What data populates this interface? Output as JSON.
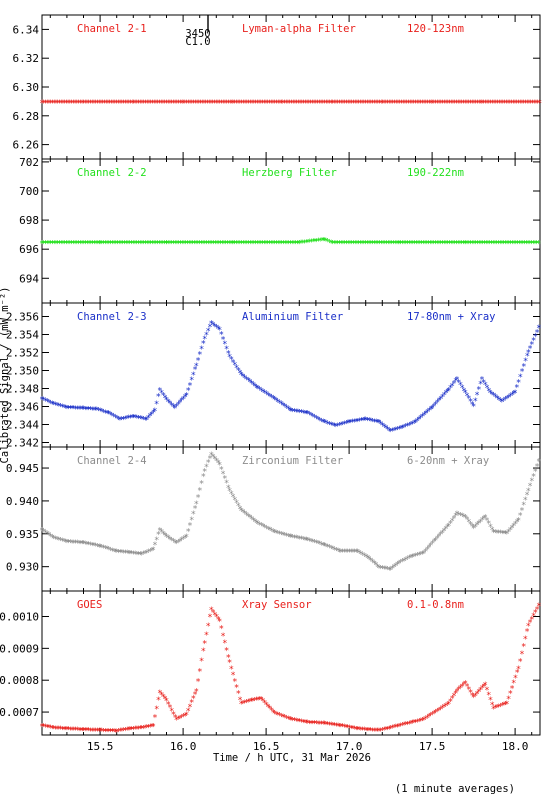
{
  "footer": {
    "xlabel": "Time / h UTC, 31 Mar 2026",
    "ylabel": "Calibrated Signal / (mW m⁻²)",
    "note": "(1 minute averages)"
  },
  "marker": {
    "top": "3450",
    "bottom": "C1.0",
    "time": 16.17
  },
  "chart_data": [
    {
      "type": "scatter",
      "color": "#e8201c",
      "labels": [
        "Channel 2-1",
        "Lyman-alpha Filter",
        "120-123nm"
      ],
      "ylim": [
        6.25,
        6.35
      ],
      "yticks": [
        6.26,
        6.28,
        6.3,
        6.32,
        6.34
      ],
      "tick_labels": [
        "6.26",
        "6.28",
        "6.30",
        "6.32",
        "6.34"
      ],
      "xlim": [
        15.15,
        18.15
      ],
      "x": [
        15.15,
        15.4,
        15.7,
        16.0,
        16.3,
        16.6,
        16.9,
        17.2,
        17.5,
        17.8,
        18.15
      ],
      "y": [
        6.289,
        6.289,
        6.289,
        6.289,
        6.289,
        6.289,
        6.289,
        6.289,
        6.289,
        6.289,
        6.289
      ]
    },
    {
      "type": "scatter",
      "color": "#22e01c",
      "labels": [
        "Channel 2-2",
        "Herzberg Filter",
        "190-222nm"
      ],
      "ylim": [
        692.3,
        702.2
      ],
      "yticks": [
        694,
        696,
        698,
        700,
        702
      ],
      "tick_labels": [
        "694",
        "696",
        "698",
        "700",
        "702"
      ],
      "xlim": [
        15.15,
        18.15
      ],
      "x": [
        15.15,
        15.5,
        15.9,
        16.3,
        16.7,
        16.85,
        16.9,
        17.3,
        17.7,
        18.15
      ],
      "y": [
        696.4,
        696.4,
        696.4,
        696.4,
        696.4,
        696.6,
        696.4,
        696.4,
        696.4,
        696.4
      ]
    },
    {
      "type": "scatter",
      "color": "#1a2fc8",
      "labels": [
        "Channel 2-3",
        "Aluminium Filter",
        "17-80nm + Xray"
      ],
      "ylim": [
        2.3415,
        2.3575
      ],
      "yticks": [
        2.342,
        2.344,
        2.346,
        2.348,
        2.35,
        2.352,
        2.354,
        2.356
      ],
      "tick_labels": [
        "2.342",
        "2.344",
        "2.346",
        "2.348",
        "2.350",
        "2.352",
        "2.354",
        "2.356"
      ],
      "xlim": [
        15.15,
        18.15
      ],
      "x": [
        15.15,
        15.22,
        15.3,
        15.4,
        15.48,
        15.55,
        15.62,
        15.7,
        15.78,
        15.83,
        15.86,
        15.9,
        15.95,
        16.02,
        16.08,
        16.13,
        16.17,
        16.22,
        16.28,
        16.35,
        16.45,
        16.55,
        16.65,
        16.75,
        16.85,
        16.92,
        17.0,
        17.1,
        17.18,
        17.25,
        17.32,
        17.4,
        17.5,
        17.6,
        17.65,
        17.7,
        17.75,
        17.8,
        17.85,
        17.92,
        18.0,
        18.08,
        18.15
      ],
      "y": [
        2.3468,
        2.3462,
        2.3458,
        2.3457,
        2.3456,
        2.3452,
        2.3445,
        2.3448,
        2.3445,
        2.3455,
        2.3478,
        2.3467,
        2.3458,
        2.3472,
        2.3505,
        2.3535,
        2.3552,
        2.3545,
        2.3515,
        2.3495,
        2.348,
        2.3468,
        2.3455,
        2.3452,
        2.3442,
        2.3438,
        2.3442,
        2.3445,
        2.3442,
        2.3432,
        2.3436,
        2.3442,
        2.3458,
        2.3478,
        2.349,
        2.3475,
        2.346,
        2.349,
        2.3475,
        2.3465,
        2.3475,
        2.352,
        2.355
      ]
    },
    {
      "type": "scatter",
      "color": "#8c8c8c",
      "labels": [
        "Channel 2-4",
        "Zirconium Filter",
        "6-20nm + Xray"
      ],
      "ylim": [
        0.9263,
        0.9482
      ],
      "yticks": [
        0.93,
        0.935,
        0.94,
        0.945
      ],
      "tick_labels": [
        "0.930",
        "0.935",
        "0.940",
        "0.945"
      ],
      "xlim": [
        15.15,
        18.15
      ],
      "x": [
        15.15,
        15.22,
        15.3,
        15.4,
        15.5,
        15.6,
        15.68,
        15.75,
        15.82,
        15.86,
        15.9,
        15.96,
        16.02,
        16.08,
        16.13,
        16.17,
        16.22,
        16.28,
        16.35,
        16.45,
        16.55,
        16.65,
        16.75,
        16.85,
        16.95,
        17.05,
        17.12,
        17.18,
        17.25,
        17.3,
        17.38,
        17.45,
        17.52,
        17.6,
        17.65,
        17.7,
        17.75,
        17.82,
        17.87,
        17.95,
        18.02,
        18.08,
        18.15
      ],
      "y": [
        0.9355,
        0.9343,
        0.9337,
        0.9335,
        0.933,
        0.9322,
        0.932,
        0.9318,
        0.9325,
        0.9355,
        0.9345,
        0.9335,
        0.9345,
        0.9395,
        0.9445,
        0.947,
        0.9455,
        0.9415,
        0.9385,
        0.9365,
        0.9352,
        0.9345,
        0.934,
        0.9332,
        0.9322,
        0.9322,
        0.9312,
        0.9298,
        0.9295,
        0.9305,
        0.9315,
        0.932,
        0.934,
        0.9362,
        0.938,
        0.9375,
        0.9358,
        0.9375,
        0.9352,
        0.935,
        0.937,
        0.9415,
        0.9465
      ]
    },
    {
      "type": "scatter",
      "color": "#e8201c",
      "labels": [
        "GOES",
        "Xray Sensor",
        "0.1-0.8nm"
      ],
      "ylim": [
        0.000628,
        0.00108
      ],
      "yticks": [
        0.0007,
        0.0008,
        0.0009,
        0.001
      ],
      "tick_labels": [
        "0.0007",
        "0.0008",
        "0.0009",
        "0.0010"
      ],
      "xlim": [
        15.15,
        18.15
      ],
      "x": [
        15.15,
        15.22,
        15.3,
        15.4,
        15.5,
        15.6,
        15.68,
        15.75,
        15.82,
        15.86,
        15.9,
        15.96,
        16.02,
        16.08,
        16.13,
        16.17,
        16.22,
        16.28,
        16.35,
        16.42,
        16.47,
        16.55,
        16.65,
        16.75,
        16.85,
        16.95,
        17.05,
        17.12,
        17.18,
        17.25,
        17.3,
        17.38,
        17.45,
        17.52,
        17.6,
        17.65,
        17.7,
        17.75,
        17.82,
        17.87,
        17.95,
        18.02,
        18.08,
        18.15
      ],
      "y": [
        0.000655,
        0.000648,
        0.000645,
        0.000642,
        0.00064,
        0.000638,
        0.000645,
        0.000648,
        0.000655,
        0.00076,
        0.000735,
        0.000675,
        0.00069,
        0.000765,
        0.000915,
        0.00102,
        0.000985,
        0.000855,
        0.000725,
        0.000735,
        0.00074,
        0.000695,
        0.000675,
        0.000665,
        0.000662,
        0.000655,
        0.000645,
        0.000642,
        0.00064,
        0.000648,
        0.000655,
        0.000665,
        0.000675,
        0.000698,
        0.000725,
        0.000765,
        0.00079,
        0.000745,
        0.000785,
        0.00071,
        0.000725,
        0.000835,
        0.00097,
        0.00104
      ]
    }
  ]
}
